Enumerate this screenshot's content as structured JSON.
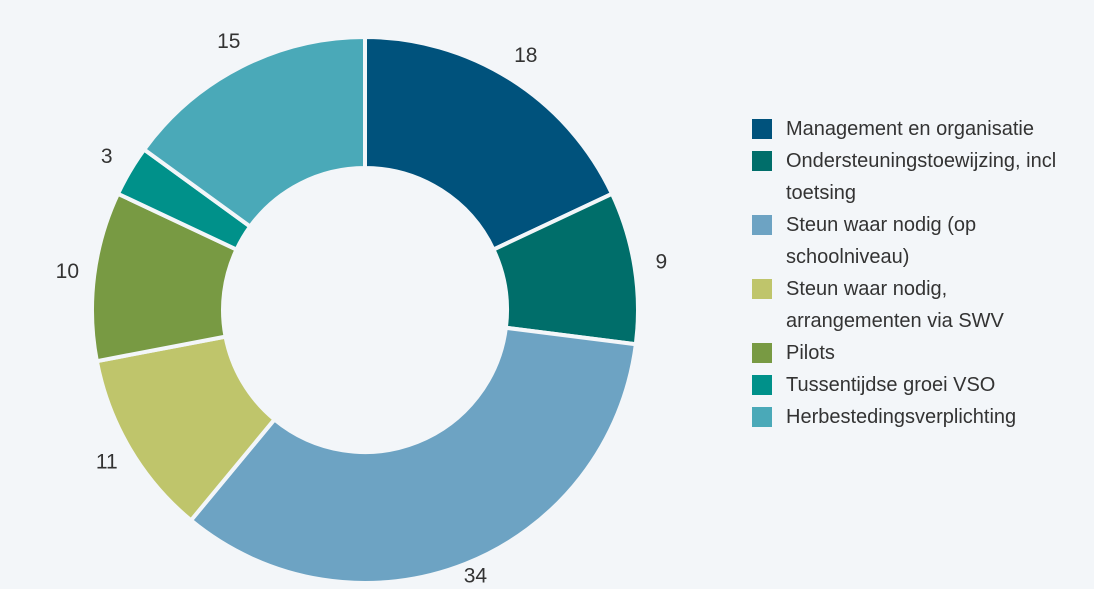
{
  "chart_data": {
    "type": "donut",
    "categories": [
      "Management en organisatie",
      "Ondersteuningstoewijzing, incl toetsing",
      "Steun waar nodig (op schoolniveau)",
      "Steun waar nodig, arrangementen via SWV",
      "Pilots",
      "Tussentijdse groei VSO",
      "Herbestedingsverplichting"
    ],
    "values": [
      18,
      9,
      34,
      11,
      10,
      3,
      15
    ],
    "colors": [
      "#00527c",
      "#006e6a",
      "#6da3c3",
      "#bfc56b",
      "#789a43",
      "#00918a",
      "#4aa9b8"
    ],
    "legend": "right"
  }
}
